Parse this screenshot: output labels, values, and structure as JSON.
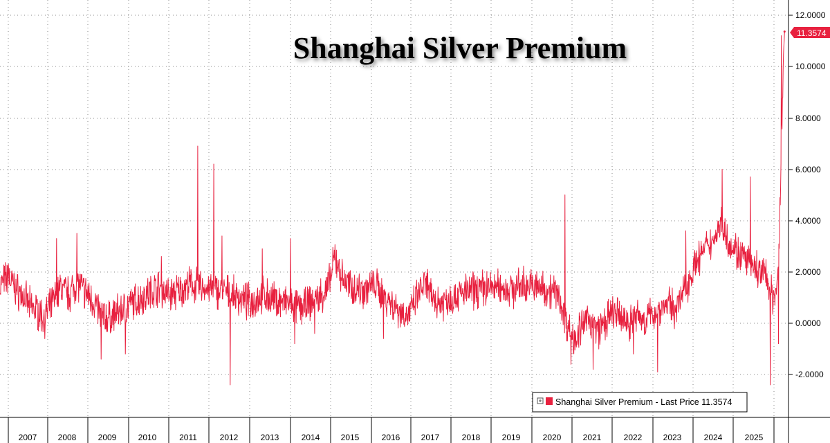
{
  "chart_data": {
    "type": "line",
    "title": "Shanghai Silver Premium",
    "xlabel": "",
    "ylabel": "",
    "x_categories": [
      "2007",
      "2008",
      "2009",
      "2010",
      "2011",
      "2012",
      "2013",
      "2014",
      "2015",
      "2016",
      "2017",
      "2018",
      "2019",
      "2020",
      "2021",
      "2022",
      "2023",
      "2024",
      "2025"
    ],
    "y_ticks": [
      "12.0000",
      "10.0000",
      "8.0000",
      "6.0000",
      "4.0000",
      "2.0000",
      "0.0000",
      "-2.0000"
    ],
    "ylim": [
      -3.5,
      12.0
    ],
    "grid": true,
    "legend": {
      "position": "bottom-right",
      "label": "Shanghai Silver Premium - Last Price 11.3574"
    },
    "last_price_label": "11.3574",
    "series": [
      {
        "name": "Shanghai Silver Premium",
        "color": "#e8213f",
        "anchors": [
          [
            2006.3,
            1.5
          ],
          [
            2006.5,
            1.8
          ],
          [
            2006.7,
            1.3
          ],
          [
            2006.9,
            1.0
          ],
          [
            2007.0,
            0.7
          ],
          [
            2007.2,
            0.5
          ],
          [
            2007.4,
            0.2
          ],
          [
            2007.6,
            0.8
          ],
          [
            2007.8,
            1.4
          ],
          [
            2008.0,
            1.1
          ],
          [
            2008.2,
            1.6
          ],
          [
            2008.4,
            1.2
          ],
          [
            2008.6,
            0.9
          ],
          [
            2008.8,
            0.3
          ],
          [
            2009.0,
            0.2
          ],
          [
            2009.3,
            0.5
          ],
          [
            2009.6,
            0.8
          ],
          [
            2009.8,
            1.0
          ],
          [
            2010.0,
            1.2
          ],
          [
            2010.2,
            1.4
          ],
          [
            2010.5,
            1.1
          ],
          [
            2010.8,
            1.3
          ],
          [
            2011.0,
            1.5
          ],
          [
            2011.3,
            1.4
          ],
          [
            2011.6,
            1.3
          ],
          [
            2011.9,
            1.2
          ],
          [
            2012.2,
            1.0
          ],
          [
            2012.5,
            0.8
          ],
          [
            2012.8,
            1.1
          ],
          [
            2013.1,
            0.9
          ],
          [
            2013.4,
            0.8
          ],
          [
            2013.7,
            0.6
          ],
          [
            2013.9,
            0.7
          ],
          [
            2014.2,
            1.0
          ],
          [
            2014.4,
            1.3
          ],
          [
            2014.5,
            1.8
          ],
          [
            2014.6,
            2.6
          ],
          [
            2014.8,
            1.7
          ],
          [
            2015.0,
            1.4
          ],
          [
            2015.3,
            1.3
          ],
          [
            2015.6,
            1.5
          ],
          [
            2015.8,
            1.1
          ],
          [
            2016.0,
            0.8
          ],
          [
            2016.2,
            0.5
          ],
          [
            2016.4,
            0.3
          ],
          [
            2016.5,
            0.5
          ],
          [
            2016.6,
            0.9
          ],
          [
            2016.8,
            1.5
          ],
          [
            2017.0,
            1.0
          ],
          [
            2017.2,
            0.8
          ],
          [
            2017.5,
            1.0
          ],
          [
            2017.8,
            1.2
          ],
          [
            2018.1,
            1.3
          ],
          [
            2018.4,
            1.4
          ],
          [
            2018.7,
            1.4
          ],
          [
            2019.0,
            1.3
          ],
          [
            2019.3,
            1.5
          ],
          [
            2019.6,
            1.4
          ],
          [
            2019.9,
            1.3
          ],
          [
            2020.1,
            1.2
          ],
          [
            2020.2,
            0.8
          ],
          [
            2020.3,
            0.2
          ],
          [
            2020.5,
            -0.6
          ],
          [
            2020.7,
            -0.2
          ],
          [
            2020.9,
            0.2
          ],
          [
            2021.1,
            -0.3
          ],
          [
            2021.3,
            0.0
          ],
          [
            2021.5,
            0.4
          ],
          [
            2021.7,
            0.2
          ],
          [
            2021.9,
            0.0
          ],
          [
            2022.1,
            0.3
          ],
          [
            2022.3,
            0.1
          ],
          [
            2022.5,
            0.4
          ],
          [
            2022.7,
            0.6
          ],
          [
            2022.9,
            0.8
          ],
          [
            2023.0,
            0.5
          ],
          [
            2023.2,
            1.0
          ],
          [
            2023.4,
            1.8
          ],
          [
            2023.6,
            2.5
          ],
          [
            2023.8,
            2.9
          ],
          [
            2024.0,
            3.3
          ],
          [
            2024.1,
            3.7
          ],
          [
            2024.2,
            3.9
          ],
          [
            2024.3,
            3.4
          ],
          [
            2024.5,
            2.9
          ],
          [
            2024.7,
            2.6
          ],
          [
            2024.9,
            2.3
          ],
          [
            2025.1,
            2.0
          ],
          [
            2025.3,
            1.9
          ],
          [
            2025.4,
            1.2
          ],
          [
            2025.5,
            0.8
          ],
          [
            2025.55,
            1.5
          ],
          [
            2025.6,
            2.5
          ],
          [
            2025.63,
            4.0
          ],
          [
            2025.66,
            6.0
          ],
          [
            2025.69,
            8.0
          ],
          [
            2025.72,
            10.0
          ],
          [
            2025.75,
            11.3574
          ]
        ],
        "spikes": [
          [
            2006.5,
            2.3
          ],
          [
            2007.7,
            3.3
          ],
          [
            2008.2,
            3.5
          ],
          [
            2008.8,
            -1.4
          ],
          [
            2009.4,
            -1.2
          ],
          [
            2010.3,
            2.6
          ],
          [
            2011.2,
            6.9
          ],
          [
            2011.6,
            6.2
          ],
          [
            2011.8,
            3.4
          ],
          [
            2012.0,
            -2.4
          ],
          [
            2012.8,
            2.9
          ],
          [
            2013.5,
            3.3
          ],
          [
            2013.6,
            -0.8
          ],
          [
            2014.1,
            -0.4
          ],
          [
            2015.8,
            -0.6
          ],
          [
            2016.9,
            2.1
          ],
          [
            2020.3,
            5.0
          ],
          [
            2020.45,
            -1.6
          ],
          [
            2021.0,
            -1.8
          ],
          [
            2022.0,
            -1.2
          ],
          [
            2022.6,
            -1.9
          ],
          [
            2023.3,
            3.6
          ],
          [
            2024.2,
            6.0
          ],
          [
            2024.9,
            5.7
          ],
          [
            2025.4,
            -2.4
          ],
          [
            2025.6,
            -0.8
          ],
          [
            2025.67,
            11.2
          ]
        ],
        "noise_amplitude": 0.55,
        "last_value": 11.3574
      }
    ]
  },
  "colors": {
    "series": "#e8213f",
    "grid": "#8a8a8a",
    "axis": "#000000",
    "last_price_bg": "#e8213f",
    "legend_border": "#000000"
  }
}
